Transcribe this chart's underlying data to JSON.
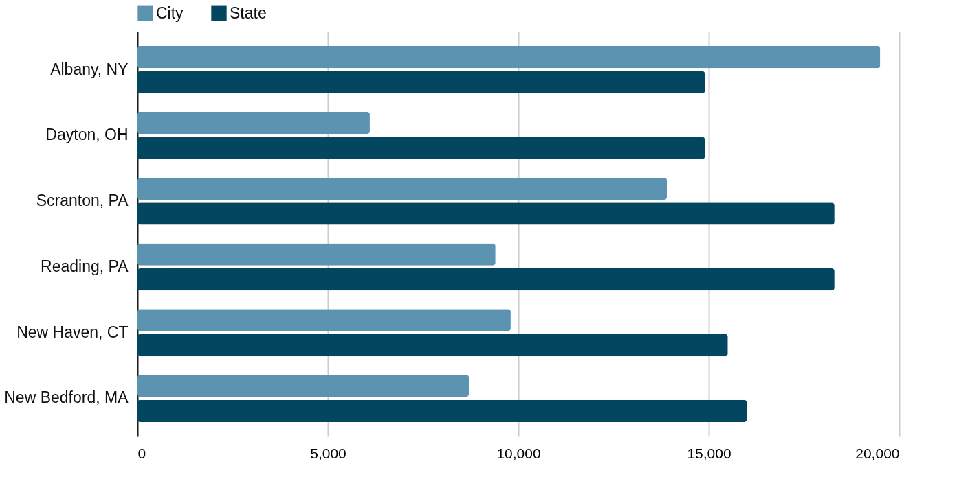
{
  "chart_data": {
    "type": "bar",
    "orientation": "horizontal",
    "categories": [
      "Albany, NY",
      "Dayton, OH",
      "Scranton, PA",
      "Reading, PA",
      "New Haven, CT",
      "New Bedford, MA"
    ],
    "series": [
      {
        "name": "City",
        "color": "#5b93b0",
        "values": [
          19500,
          6100,
          13900,
          9400,
          9800,
          8700
        ]
      },
      {
        "name": "State",
        "color": "#02465f",
        "values": [
          14900,
          14900,
          18300,
          18300,
          15500,
          16000
        ]
      }
    ],
    "xlim": [
      0,
      20000
    ],
    "xticks": [
      {
        "value": 0,
        "label": "0"
      },
      {
        "value": 5000,
        "label": "5,000"
      },
      {
        "value": 10000,
        "label": "10,000"
      },
      {
        "value": 15000,
        "label": "15,000"
      },
      {
        "value": 20000,
        "label": "20,000"
      }
    ],
    "grid": "x",
    "legend": "top"
  }
}
